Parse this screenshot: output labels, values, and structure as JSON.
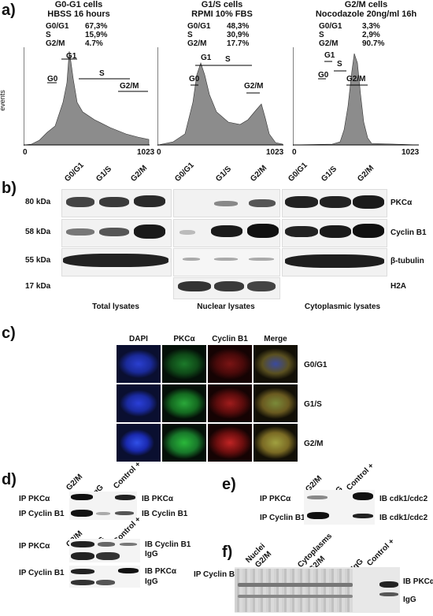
{
  "panels": {
    "a": "a)",
    "b": "b)",
    "c": "c)",
    "d": "d)",
    "e": "e)",
    "f": "f)"
  },
  "histograms": [
    {
      "title": "G0-G1 cells",
      "subtitle": "HBSS 16 hours",
      "rows": [
        [
          "G0/G1",
          "67,3%"
        ],
        [
          "S",
          "15,9%"
        ],
        [
          "G2/M",
          "4.7%"
        ]
      ],
      "gates": [
        "G0",
        "G1",
        "S",
        "G2/M"
      ]
    },
    {
      "title": "G1/S cells",
      "subtitle": "RPMI 10% FBS",
      "rows": [
        [
          "G0/G1",
          "48,3%"
        ],
        [
          "S",
          "30,9%"
        ],
        [
          "G2/M",
          "17.7%"
        ]
      ],
      "gates": [
        "G0",
        "G1",
        "S",
        "G2/M"
      ]
    },
    {
      "title": "G2/M cells",
      "subtitle": "Nocodazole 20ng/ml 16h",
      "rows": [
        [
          "G0/G1",
          "3,3%"
        ],
        [
          "S",
          "2,9%"
        ],
        [
          "G2/M",
          "90.7%"
        ]
      ],
      "gates": [
        "G0",
        "G1",
        "S",
        "G2/M"
      ]
    }
  ],
  "hist_axis": {
    "ylabel": "events",
    "xmin": "0",
    "xmax": "1023"
  },
  "western": {
    "lanes": [
      "G0/G1",
      "G1/S",
      "G2/M"
    ],
    "mw": [
      "80 kDa",
      "58 kDa",
      "55 kDa",
      "17 kDa"
    ],
    "proteins": [
      "PKCα",
      "Cyclin B1",
      "β-tubulin",
      "H2A"
    ],
    "groups": [
      "Total lysates",
      "Nuclear lysates",
      "Cytoplasmic lysates"
    ]
  },
  "imaging": {
    "columns": [
      "DAPI",
      "PKCα",
      "Cyclin B1",
      "Merge"
    ],
    "rows": [
      "G0/G1",
      "G1/S",
      "G2/M"
    ]
  },
  "ip_d": {
    "top_lanes": [
      "G2/M",
      "IgG",
      "Control +"
    ],
    "top_ip": [
      "IP PKCα",
      "IP Cyclin B1"
    ],
    "top_ib": [
      "IB PKCα",
      "IB Cyclin B1"
    ],
    "bot_lanes": [
      "G2/M",
      "IgG",
      "Control +"
    ],
    "bot_ip": [
      "IP PKCα",
      "IP Cyclin B1"
    ],
    "bot_ib1": [
      "IB Cyclin B1",
      "IgG"
    ],
    "bot_ib2": [
      "IB PKCα",
      "IgG"
    ]
  },
  "ip_e": {
    "lanes": [
      "G2/M",
      "IgG",
      "Control +"
    ],
    "ip": [
      "IP PKCα",
      "IP Cyclin B1"
    ],
    "ib": [
      "IB cdk1/cdc2",
      "IB cdk1/cdc2"
    ]
  },
  "ip_f": {
    "lane_labels": [
      "Nuclei",
      "G2/M",
      "Cytoplasms",
      "G2/M",
      "IgG",
      "Control +"
    ],
    "ip": "IP Cyclin B1",
    "ib": [
      "IB PKCα",
      "IgG"
    ]
  }
}
